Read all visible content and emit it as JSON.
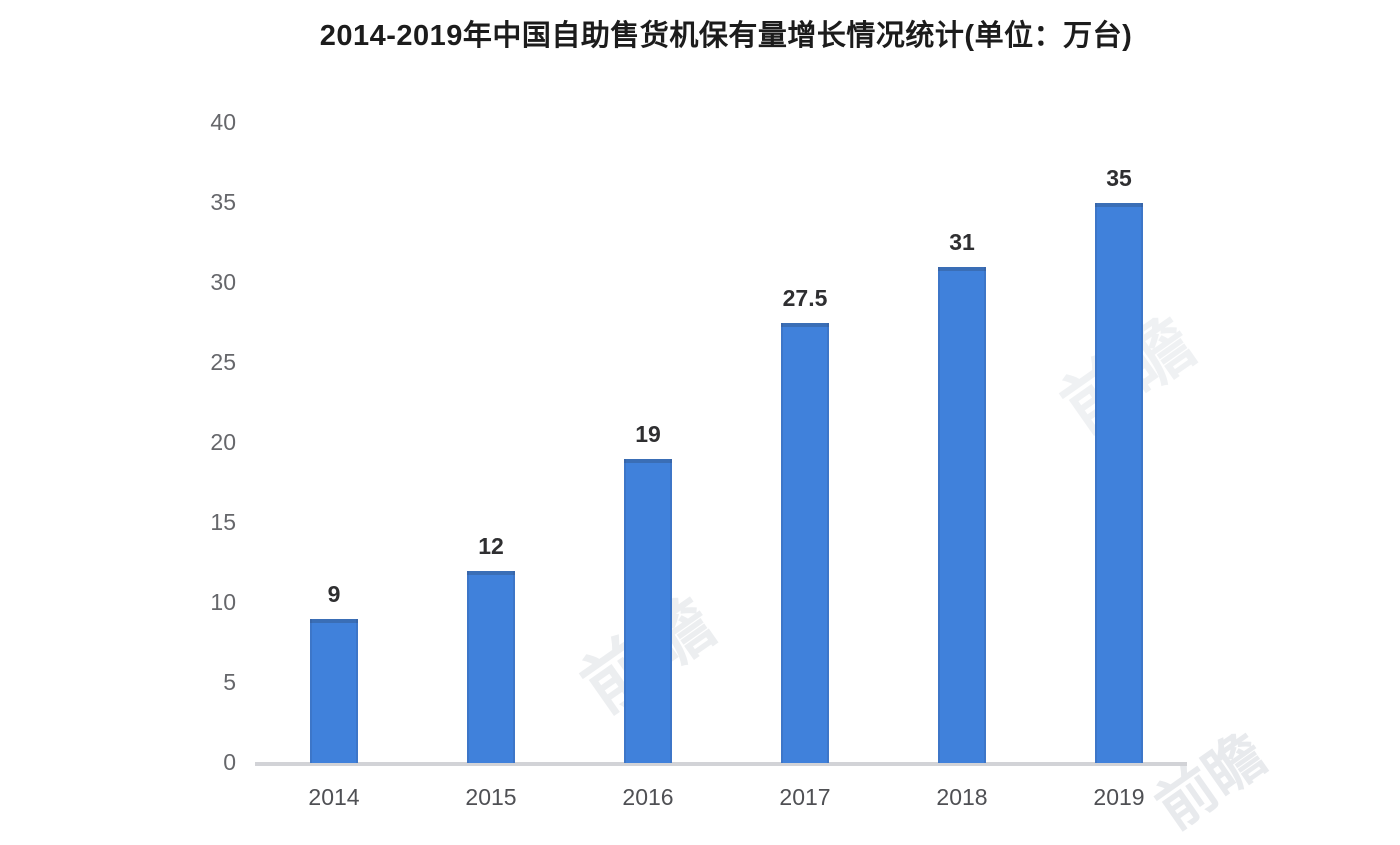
{
  "chart_data": {
    "type": "bar",
    "title": "2014-2019年中国自助售货机保有量增长情况统计(单位：万台)",
    "categories": [
      "2014",
      "2015",
      "2016",
      "2017",
      "2018",
      "2019"
    ],
    "values": [
      9,
      12,
      19,
      27.5,
      31,
      35
    ],
    "value_labels": [
      "9",
      "12",
      "19",
      "27.5",
      "31",
      "35"
    ],
    "y_ticks": [
      0,
      5,
      10,
      15,
      20,
      25,
      30,
      35,
      40
    ],
    "ylim": [
      0,
      40
    ],
    "xlabel": "",
    "ylabel": "",
    "grid": "off",
    "legend": "none",
    "bar_color": "#4081DB",
    "tick_color": "#66676B",
    "value_label_color": "#2F2F31",
    "axis_line_color": "#D2D3D7"
  },
  "watermark": {
    "text": "前瞻"
  }
}
